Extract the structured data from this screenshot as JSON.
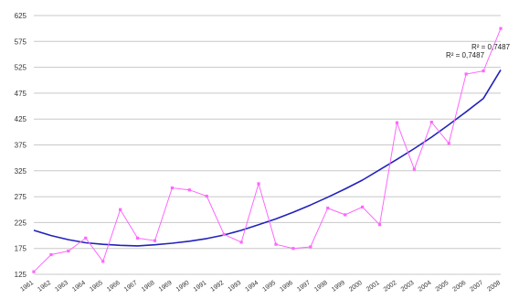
{
  "chart_data": {
    "type": "line",
    "title": "",
    "xlabel": "",
    "ylabel": "",
    "ylim": [
      125,
      625
    ],
    "yticks": [
      125,
      175,
      225,
      275,
      325,
      375,
      425,
      475,
      525,
      575,
      625
    ],
    "grid": true,
    "x": [
      "1961",
      "1962",
      "1963",
      "1964",
      "1965",
      "1966",
      "1967",
      "1968",
      "1969",
      "1990",
      "1991",
      "1992",
      "1993",
      "1994",
      "1995",
      "1996",
      "1997",
      "1998",
      "1999",
      "2000",
      "2001",
      "2002",
      "2003",
      "2004",
      "2005",
      "2006",
      "2007",
      "2008"
    ],
    "series": [
      {
        "type": "line-markers",
        "color": "#ff66ff",
        "values": [
          130,
          163,
          170,
          195,
          150,
          250,
          195,
          190,
          292,
          288,
          276,
          202,
          187,
          300,
          183,
          175,
          178,
          253,
          240,
          255,
          221,
          418,
          328,
          419,
          378,
          512,
          518,
          600
        ]
      },
      {
        "type": "trendline",
        "color": "#2222bb",
        "values": [
          210,
          200,
          192,
          186,
          183,
          181,
          180,
          182,
          185,
          189,
          194,
          201,
          210,
          221,
          232,
          245,
          259,
          274,
          290,
          307,
          327,
          347,
          368,
          390,
          414,
          439,
          465,
          520
        ]
      }
    ],
    "annotations": [
      "R² = 0,7487",
      "R² = 0,7487"
    ]
  }
}
